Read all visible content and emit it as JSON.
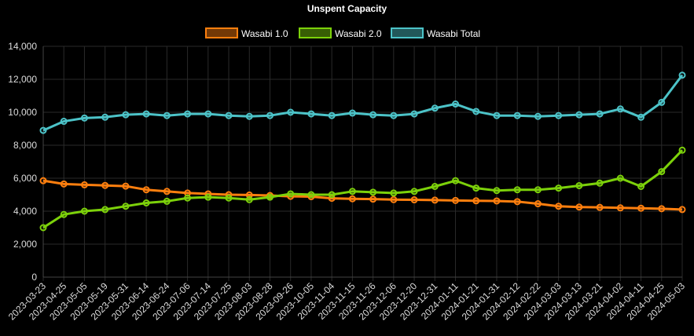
{
  "chart_data": {
    "type": "line",
    "title": "Unspent Capacity",
    "xlabel": "",
    "ylabel": "",
    "ylim": [
      0,
      14000
    ],
    "yticks": [
      "0",
      "2,000",
      "4,000",
      "6,000",
      "8,000",
      "10,000",
      "12,000",
      "14,000"
    ],
    "legend_position": "top-center",
    "grid": true,
    "categories": [
      "2023-03-23",
      "2023-04-25",
      "2023-05-05",
      "2023-05-19",
      "2023-05-31",
      "2023-06-14",
      "2023-06-24",
      "2023-07-06",
      "2023-07-14",
      "2023-07-25",
      "2023-08-03",
      "2023-08-28",
      "2023-09-26",
      "2023-10-05",
      "2023-11-04",
      "2023-11-15",
      "2023-11-26",
      "2023-12-06",
      "2023-12-20",
      "2023-12-31",
      "2024-01-11",
      "2024-01-21",
      "2024-01-31",
      "2024-02-12",
      "2024-02-22",
      "2024-03-03",
      "2024-03-13",
      "2024-03-21",
      "2024-04-02",
      "2024-04-11",
      "2024-04-25",
      "2024-05-03"
    ],
    "series": [
      {
        "name": "Wasabi 1.0",
        "color": "#ff7f0e",
        "values": [
          5850,
          5650,
          5600,
          5560,
          5520,
          5300,
          5200,
          5100,
          5050,
          5000,
          4980,
          4950,
          4900,
          4880,
          4780,
          4750,
          4730,
          4700,
          4690,
          4670,
          4650,
          4630,
          4620,
          4580,
          4450,
          4300,
          4250,
          4230,
          4200,
          4180,
          4150,
          4100
        ]
      },
      {
        "name": "Wasabi 2.0",
        "color": "#7cd10a",
        "values": [
          3000,
          3800,
          4000,
          4100,
          4300,
          4500,
          4600,
          4800,
          4850,
          4800,
          4700,
          4850,
          5050,
          5000,
          5000,
          5200,
          5150,
          5100,
          5200,
          5500,
          5850,
          5400,
          5250,
          5300,
          5300,
          5400,
          5550,
          5700,
          6000,
          5500,
          6400,
          7700
        ]
      },
      {
        "name": "Wasabi Total",
        "color": "#4cc3c8",
        "values": [
          8900,
          9450,
          9650,
          9700,
          9850,
          9900,
          9800,
          9900,
          9900,
          9800,
          9750,
          9800,
          10000,
          9900,
          9800,
          9950,
          9850,
          9800,
          9900,
          10250,
          10500,
          10050,
          9800,
          9800,
          9750,
          9800,
          9850,
          9900,
          10200,
          9700,
          10600,
          12250
        ]
      }
    ]
  }
}
